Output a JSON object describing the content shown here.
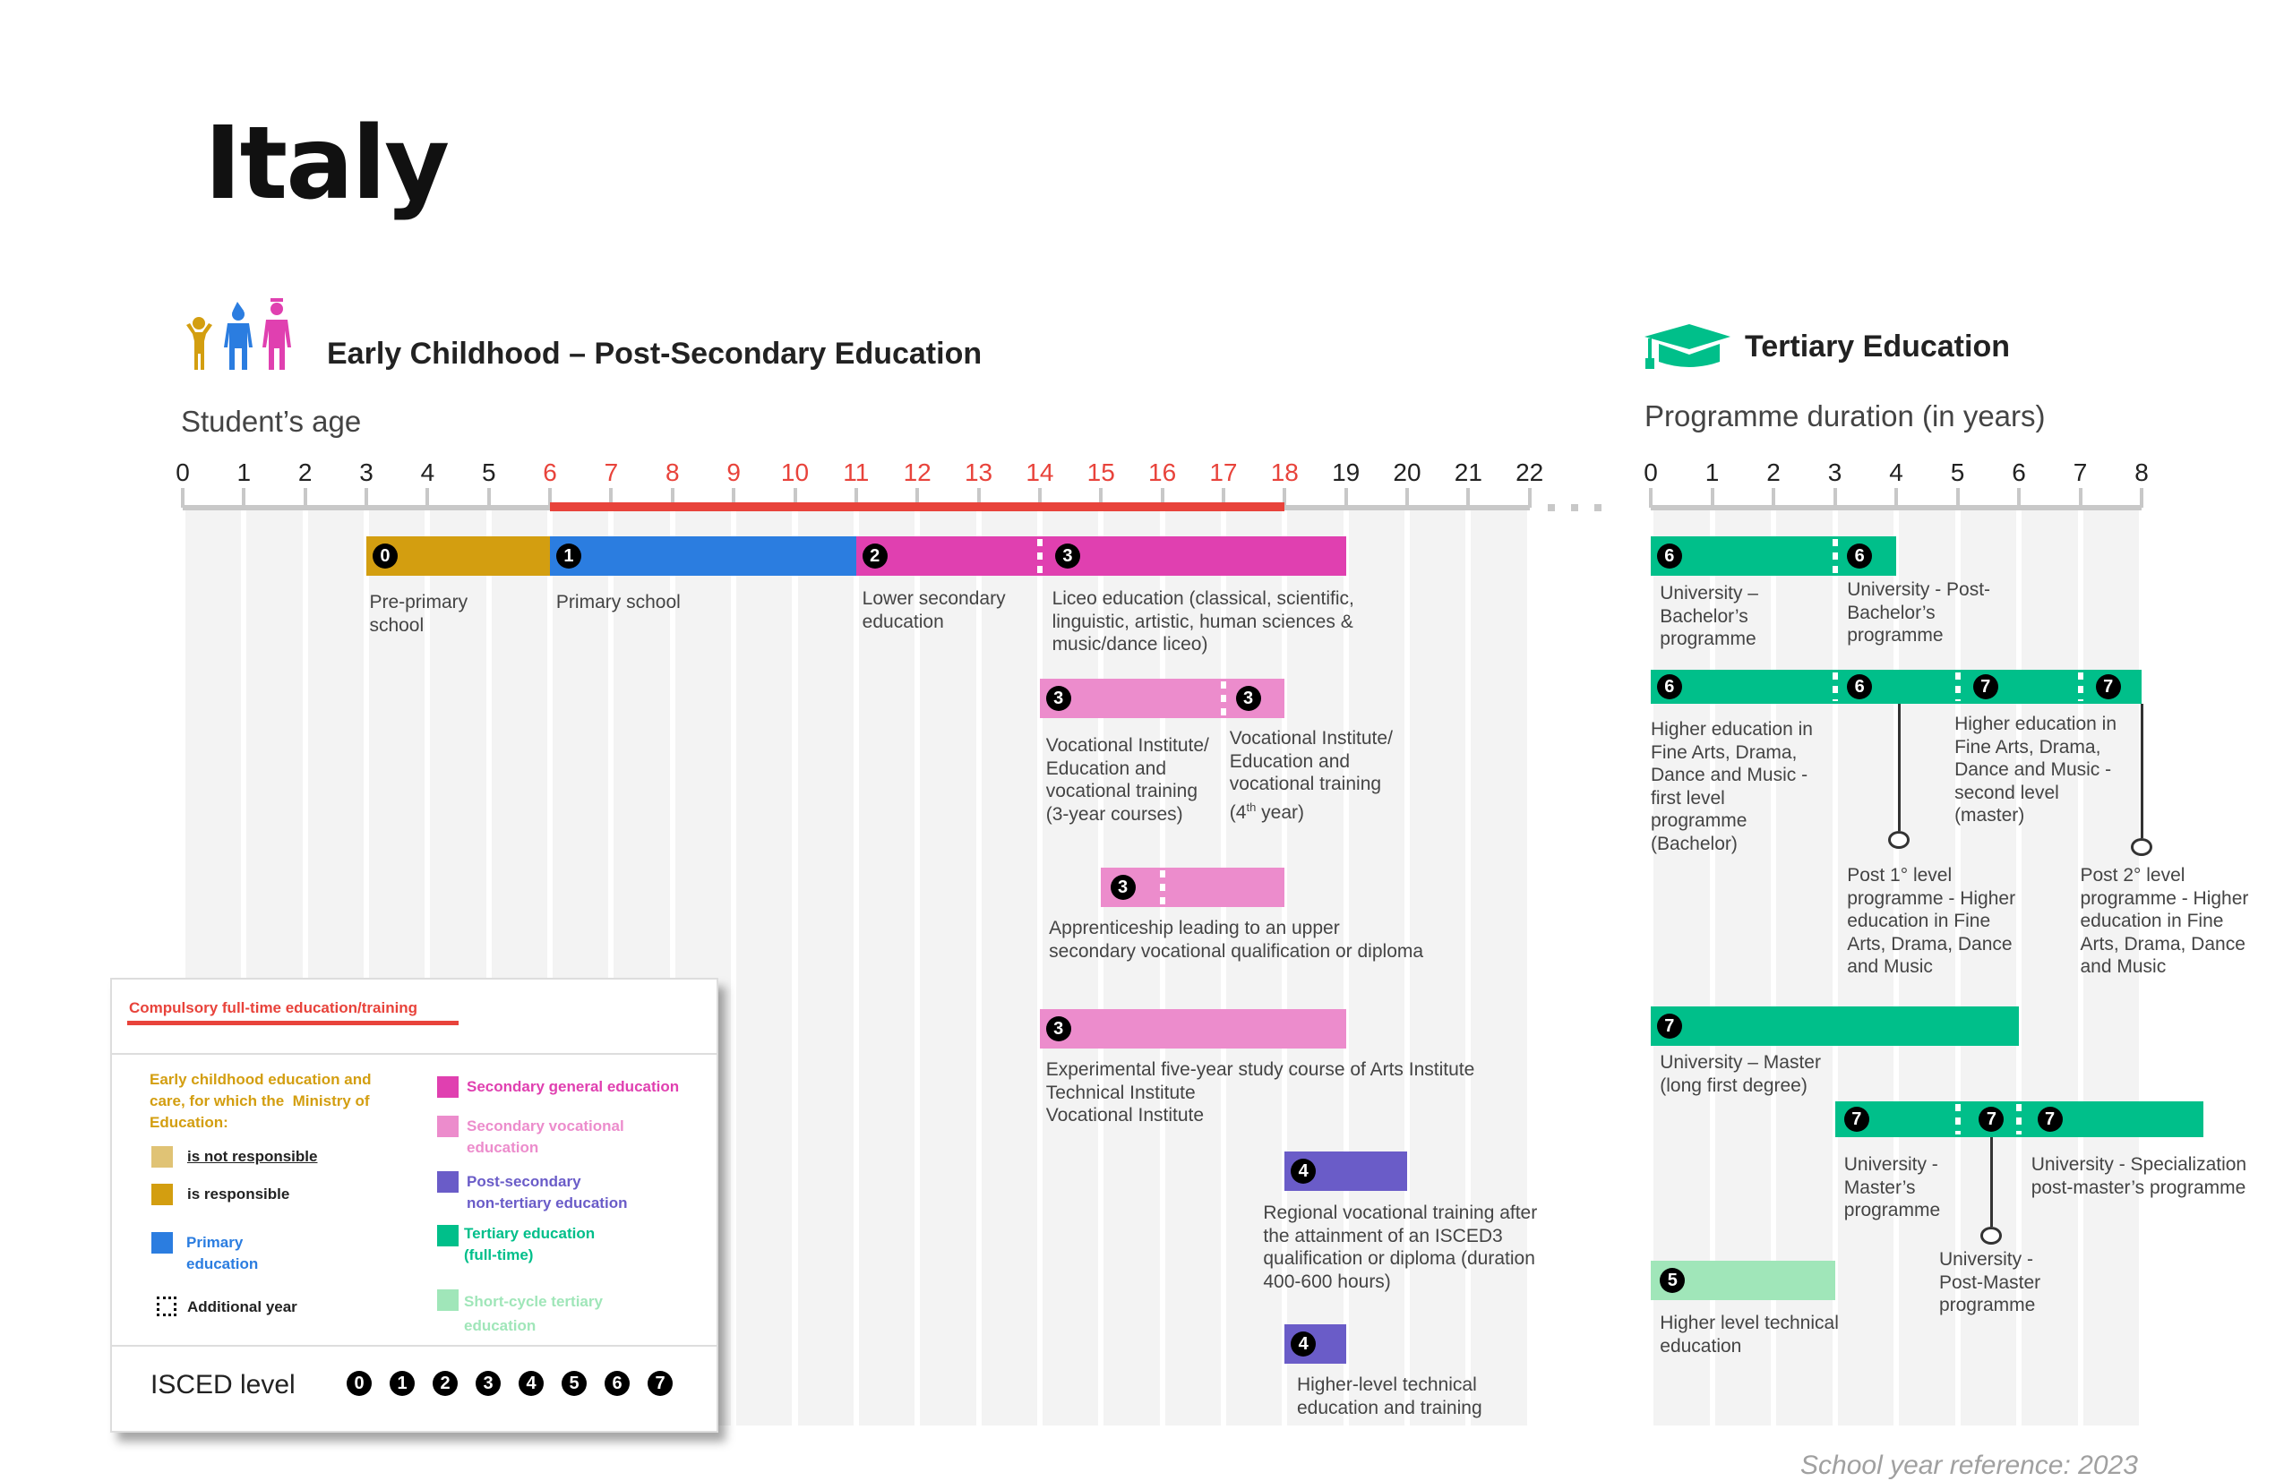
{
  "title": "Italy",
  "colors": {
    "ecec_not_responsible": "#e0c375",
    "ecec_responsible": "#d39e10",
    "primary": "#2b7de0",
    "secondary_general": "#e040b0",
    "secondary_vocational": "#ec8ccc",
    "post_secondary": "#6a5cc8",
    "tertiary": "#00bf8a",
    "short_cycle": "#a0e6b9",
    "compulsory": "#e8433b"
  },
  "left": {
    "section_title": "Early Childhood – Post-Secondary Education",
    "icon": "children-icon",
    "axis_title": "Student’s age",
    "ages": [
      "0",
      "1",
      "2",
      "3",
      "4",
      "5",
      "6",
      "7",
      "8",
      "9",
      "10",
      "11",
      "12",
      "13",
      "14",
      "15",
      "16",
      "17",
      "18",
      "19",
      "20",
      "21",
      "22"
    ],
    "compulsory_from": 6,
    "compulsory_to": 18,
    "programmes": [
      {
        "label": "Pre-primary\nschool",
        "start": 3,
        "end": 6,
        "color": "ecec_responsible",
        "badges": [
          0
        ],
        "dividers": []
      },
      {
        "label": "Primary school",
        "start": 6,
        "end": 11,
        "color": "primary",
        "badges": [
          1
        ],
        "dividers": []
      },
      {
        "label": "Lower secondary\neducation",
        "start": 11,
        "end": 14,
        "color": "secondary_general",
        "badges": [
          2
        ],
        "dividers": []
      },
      {
        "label": "Liceo education (classical, scientific,\nlinguistic, artistic, human sciences &\nmusic/dance liceo)",
        "start": 14,
        "end": 19,
        "color": "secondary_general",
        "badges": [
          3
        ],
        "dividers": [
          14
        ]
      },
      {
        "label": "Vocational Institute/\nEducation and\nvocational training\n(3-year courses)",
        "start": 14,
        "end": 17,
        "color": "secondary_vocational",
        "badges": [
          3
        ],
        "dividers": []
      },
      {
        "label": "Vocational Institute/\nEducation and\nvocational training\n(4th year)",
        "start": 17,
        "end": 18,
        "color": "secondary_vocational",
        "badges": [
          3
        ],
        "dividers": [
          17
        ]
      },
      {
        "label": "Apprenticeship leading to an upper\nsecondary vocational qualification or diploma",
        "start": 15,
        "end": 18,
        "color": "secondary_vocational",
        "badges": [
          3
        ],
        "dividers": [
          16
        ]
      },
      {
        "label": "Experimental five-year study course of Arts Institute\nTechnical Institute\nVocational Institute",
        "start": 14,
        "end": 19,
        "color": "secondary_vocational",
        "badges": [
          3
        ],
        "dividers": []
      },
      {
        "label": "Regional vocational training after\nthe attainment of an ISCED3\nqualification or diploma (duration\n400-600 hours)",
        "start": 18,
        "end": 20,
        "color": "post_secondary",
        "badges": [
          4
        ],
        "dividers": []
      },
      {
        "label": "Higher-level technical\neducation and training",
        "start": 18,
        "end": 19,
        "color": "post_secondary",
        "badges": [
          4
        ],
        "dividers": []
      }
    ]
  },
  "right": {
    "section_title": "Tertiary Education",
    "icon": "graduation-cap-icon",
    "axis_title": "Programme duration (in years)",
    "years": [
      "0",
      "1",
      "2",
      "3",
      "4",
      "5",
      "6",
      "7",
      "8"
    ],
    "programmes": [
      {
        "label": "University –\nBachelor’s\nprogramme",
        "start": 0,
        "end": 3,
        "color": "tertiary",
        "badges": [
          6
        ],
        "dividers": []
      },
      {
        "label": "University - Post-\nBachelor’s\nprogramme",
        "start": 3,
        "end": 4,
        "color": "tertiary",
        "badges": [
          6
        ],
        "dividers": [
          3
        ]
      },
      {
        "label": "Higher education in\nFine Arts, Drama,\nDance and Music -\nfirst level\nprogramme\n(Bachelor)",
        "start": 0,
        "end": 3,
        "color": "tertiary",
        "badges": [
          6
        ],
        "dividers": []
      },
      {
        "label": "Post 1° level\nprogramme - Higher\neducation in Fine\nArts, Drama, Dance\nand Music",
        "start": 3,
        "end": 5,
        "color": "tertiary",
        "badges": [
          6
        ],
        "dividers": [
          3
        ]
      },
      {
        "label": "Higher education in\nFine Arts, Drama,\nDance and Music -\nsecond level\n(master)",
        "start": 5,
        "end": 7,
        "color": "tertiary",
        "badges": [
          7
        ],
        "dividers": [
          5
        ]
      },
      {
        "label": "Post 2° level\nprogramme - Higher\neducation in Fine\nArts, Drama, Dance\nand Music",
        "start": 7,
        "end": 8,
        "color": "tertiary",
        "badges": [
          7
        ],
        "dividers": [
          7
        ]
      },
      {
        "label": "University – Master\n(long first degree)",
        "start": 0,
        "end": 6,
        "color": "tertiary",
        "badges": [
          7
        ],
        "dividers": []
      },
      {
        "label": "University -\nMaster’s\nprogramme",
        "start": 3,
        "end": 5,
        "color": "tertiary",
        "badges": [
          7
        ],
        "dividers": []
      },
      {
        "label": "University -\nPost-Master\nprogramme",
        "start": 5,
        "end": 6,
        "color": "tertiary",
        "badges": [
          7
        ],
        "dividers": [
          5
        ]
      },
      {
        "label": "University - Specialization\npost-master’s programme",
        "start": 6,
        "end": 9,
        "color": "tertiary",
        "badges": [
          7
        ],
        "dividers": [
          6
        ]
      },
      {
        "label": "Higher level technical\neducation",
        "start": 0,
        "end": 3,
        "color": "short_cycle",
        "badges": [
          5
        ],
        "dividers": []
      }
    ]
  },
  "legend": {
    "compulsory": "Compulsory full-time education/training",
    "ecec_intro": "Early childhood education and\ncare, for which the  Ministry of\nEducation:",
    "not_responsible": "is not responsible",
    "responsible": "is responsible",
    "primary": "Primary\neducation",
    "additional_year": "Additional year",
    "secondary_general": "Secondary general education",
    "secondary_vocational": "Secondary vocational\neducation",
    "post_secondary": "Post-secondary\nnon-tertiary education",
    "tertiary": "Tertiary education\n(full-time)",
    "short_cycle": "Short-cycle tertiary\neducation",
    "isced_label": "ISCED level",
    "isced_levels": [
      "0",
      "1",
      "2",
      "3",
      "4",
      "5",
      "6",
      "7"
    ]
  },
  "footer": "School year reference: 2023"
}
